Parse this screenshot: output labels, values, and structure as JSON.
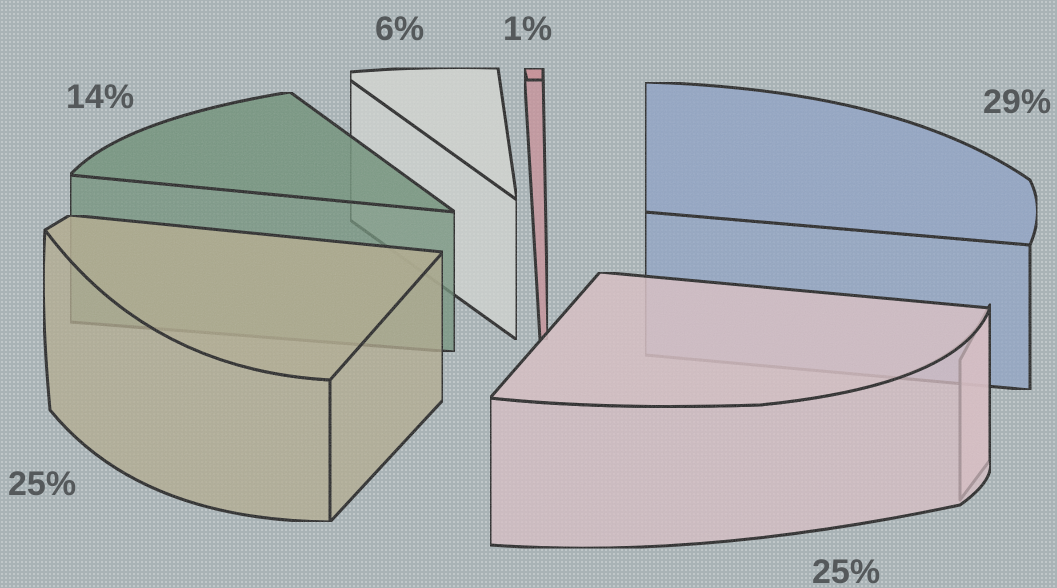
{
  "chart_data": {
    "type": "pie",
    "style": "3d-exploded",
    "slices": [
      {
        "value": 29,
        "label": "29%",
        "color": "#8fa3c6"
      },
      {
        "value": 25,
        "label": "25%",
        "color": "#d8bfc4"
      },
      {
        "value": 25,
        "label": "25%",
        "color": "#b3ab8d"
      },
      {
        "value": 14,
        "label": "14%",
        "color": "#6f9278"
      },
      {
        "value": 6,
        "label": "6%",
        "color": "#d3d6d1"
      },
      {
        "value": 1,
        "label": "1%",
        "color": "#c98f97"
      }
    ],
    "legend": "none"
  }
}
